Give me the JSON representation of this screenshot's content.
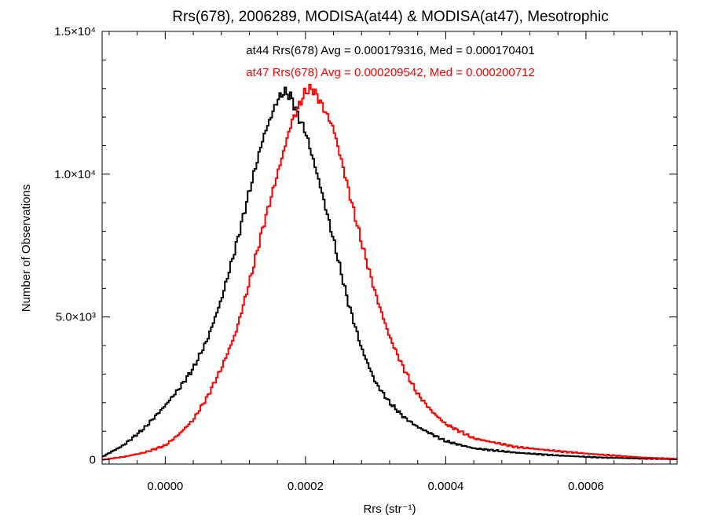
{
  "chart_data": {
    "type": "line",
    "title": "Rrs(678), 2006289, MODISA(at44) & MODISA(at47), Mesotrophic",
    "xlabel": "Rrs (str⁻¹)",
    "ylabel": "Number of Observations",
    "xlim": [
      -9e-05,
      0.00073
    ],
    "ylim": [
      -150,
      15000
    ],
    "x_ticks": [
      {
        "value": 0.0,
        "label": "0.0000"
      },
      {
        "value": 0.0002,
        "label": "0.0002"
      },
      {
        "value": 0.0004,
        "label": "0.0004"
      },
      {
        "value": 0.0006,
        "label": "0.0006"
      }
    ],
    "y_ticks": [
      {
        "value": 0,
        "label": "0"
      },
      {
        "value": 5000,
        "label": "5.0×10³"
      },
      {
        "value": 10000,
        "label": "1.0×10⁴"
      },
      {
        "value": 15000,
        "label": "1.5×10⁴"
      }
    ],
    "grid": false,
    "annotations": [
      {
        "text": "at44 Rrs(678) Avg = 0.000179316, Med = 0.000170401",
        "color": "#000000"
      },
      {
        "text": "at47 Rrs(678) Avg = 0.000209542, Med = 0.000200712",
        "color": "#ff0000"
      }
    ],
    "series": [
      {
        "color": "#000000",
        "x": [
          -9e-05,
          -6e-05,
          -3e-05,
          0.0,
          2e-05,
          4e-05,
          6e-05,
          8e-05,
          0.0001,
          0.00012,
          0.00014,
          0.00016,
          0.00017,
          0.00018,
          0.00019,
          0.0002,
          0.00022,
          0.00024,
          0.00026,
          0.00028,
          0.0003,
          0.00032,
          0.00034,
          0.00036,
          0.0004,
          0.00044,
          0.0005,
          0.00056,
          0.00062,
          0.00068,
          0.00073
        ],
        "y": [
          100,
          500,
          1100,
          1900,
          2500,
          3200,
          4200,
          5600,
          7400,
          9400,
          11300,
          12600,
          12900,
          12700,
          12000,
          11500,
          9700,
          7700,
          5600,
          3900,
          2700,
          2000,
          1500,
          1150,
          650,
          400,
          250,
          150,
          80,
          40,
          20
        ]
      },
      {
        "color": "#ff0000",
        "x": [
          -9e-05,
          -6e-05,
          -3e-05,
          0.0,
          2e-05,
          4e-05,
          6e-05,
          8e-05,
          0.0001,
          0.00012,
          0.00014,
          0.00016,
          0.00018,
          0.0002,
          0.00021,
          0.00022,
          0.00024,
          0.00026,
          0.00028,
          0.0003,
          0.00032,
          0.00034,
          0.00036,
          0.00038,
          0.0004,
          0.00044,
          0.0005,
          0.00056,
          0.00062,
          0.00068,
          0.00073
        ],
        "y": [
          0,
          100,
          250,
          500,
          900,
          1400,
          2200,
          3200,
          4400,
          6200,
          8200,
          10000,
          11800,
          12900,
          13000,
          12600,
          11600,
          9600,
          7600,
          5800,
          4300,
          3200,
          2300,
          1700,
          1250,
          750,
          450,
          300,
          180,
          80,
          30
        ]
      }
    ]
  }
}
